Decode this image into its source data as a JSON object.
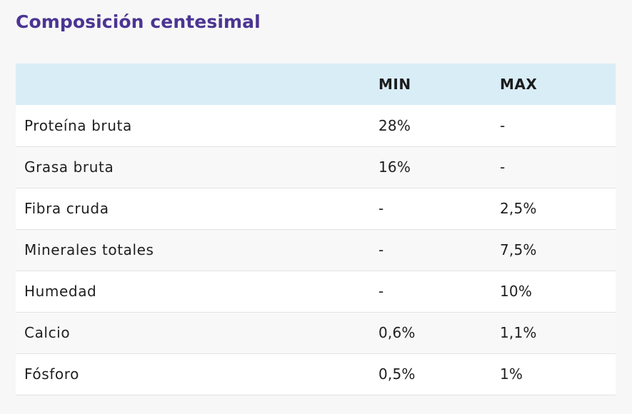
{
  "title": "Composición centesimal",
  "table": {
    "headers": [
      "",
      "MIN",
      "MAX"
    ],
    "rows": [
      {
        "name": "Proteína bruta",
        "min": "28%",
        "max": "-"
      },
      {
        "name": "Grasa bruta",
        "min": "16%",
        "max": "-"
      },
      {
        "name": "Fibra cruda",
        "min": "-",
        "max": "2,5%"
      },
      {
        "name": "Minerales totales",
        "min": "-",
        "max": "7,5%"
      },
      {
        "name": "Humedad",
        "min": "-",
        "max": "10%"
      },
      {
        "name": "Calcio",
        "min": "0,6%",
        "max": "1,1%"
      },
      {
        "name": "Fósforo",
        "min": "0,5%",
        "max": "1%"
      }
    ]
  },
  "colors": {
    "title": "#4b3593",
    "header_background": "#d9edf7",
    "row_alt_background": "#f8f8f8",
    "page_background": "#f7f7f7"
  }
}
